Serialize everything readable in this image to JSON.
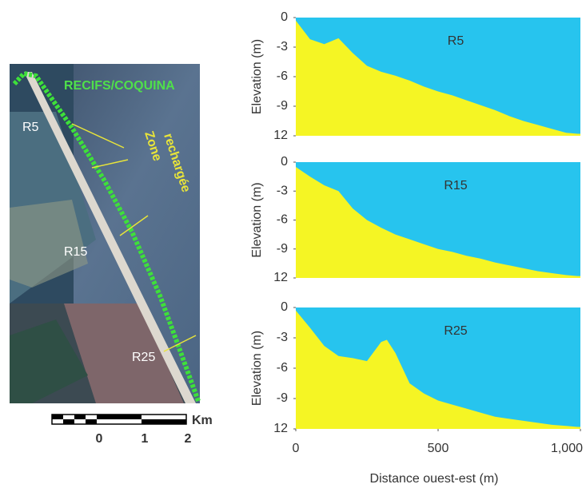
{
  "map": {
    "reef_label": "RECIFS/COQUINA",
    "zone_label": [
      "Zone",
      "rechargée"
    ],
    "profiles": [
      "R5",
      "R15",
      "R25"
    ],
    "scale": {
      "ticks": [
        "0",
        "1",
        "2"
      ],
      "unit": "Km"
    }
  },
  "chart_data": [
    {
      "type": "area",
      "title": "R5",
      "ylabel": "Elevation (m)",
      "color": "#f5f524",
      "background": "#27c4ee",
      "x": [
        0,
        50,
        100,
        150,
        200,
        250,
        300,
        350,
        400,
        450,
        500,
        550,
        600,
        650,
        700,
        750,
        800,
        850,
        900,
        950,
        990
      ],
      "values": [
        -0.3,
        -2.2,
        -2.7,
        -2.1,
        -3.6,
        -4.9,
        -5.5,
        -5.9,
        -6.4,
        -7.0,
        -7.5,
        -7.9,
        -8.4,
        -8.9,
        -9.4,
        -10.0,
        -10.5,
        -10.9,
        -11.3,
        -11.7,
        -11.8
      ],
      "xlim": [
        0,
        1000
      ],
      "ylim": [
        -12,
        0
      ],
      "yticks": [
        0,
        -3,
        -6,
        -9,
        {
          "value": -12,
          "label": "12"
        }
      ]
    },
    {
      "type": "area",
      "title": "R15",
      "ylabel": "Elevation (m)",
      "color": "#f5f524",
      "background": "#27c4ee",
      "x": [
        0,
        50,
        100,
        150,
        200,
        250,
        300,
        350,
        400,
        450,
        500,
        550,
        600,
        650,
        700,
        750,
        800,
        850,
        900,
        950,
        990
      ],
      "values": [
        -0.5,
        -1.5,
        -2.4,
        -3.0,
        -4.8,
        -6.0,
        -6.8,
        -7.5,
        -8.0,
        -8.5,
        -9.0,
        -9.3,
        -9.7,
        -10.0,
        -10.4,
        -10.7,
        -11.0,
        -11.3,
        -11.5,
        -11.7,
        -11.8
      ],
      "xlim": [
        0,
        1000
      ],
      "ylim": [
        -12,
        0
      ],
      "yticks": [
        0,
        -3,
        -6,
        -9,
        {
          "value": -12,
          "label": "12"
        }
      ]
    },
    {
      "type": "area",
      "title": "R25",
      "ylabel": "Elevation (m)",
      "xlabel": "Distance ouest-est (m)",
      "color": "#f5f524",
      "background": "#27c4ee",
      "x": [
        0,
        50,
        100,
        150,
        200,
        250,
        300,
        320,
        350,
        400,
        450,
        500,
        550,
        600,
        650,
        700,
        750,
        800,
        850,
        900,
        950,
        990
      ],
      "values": [
        -0.3,
        -2.0,
        -3.8,
        -4.8,
        -5.0,
        -5.3,
        -3.4,
        -3.2,
        -4.5,
        -7.5,
        -8.5,
        -9.2,
        -9.6,
        -10.0,
        -10.4,
        -10.8,
        -11.0,
        -11.2,
        -11.4,
        -11.6,
        -11.7,
        -11.8
      ],
      "xlim": [
        0,
        1000
      ],
      "ylim": [
        -12,
        0
      ],
      "yticks": [
        0,
        -3,
        -6,
        -9,
        {
          "value": -12,
          "label": "12"
        }
      ],
      "xticks": [
        0,
        500,
        {
          "value": 1000,
          "label": "1,000"
        }
      ]
    }
  ]
}
